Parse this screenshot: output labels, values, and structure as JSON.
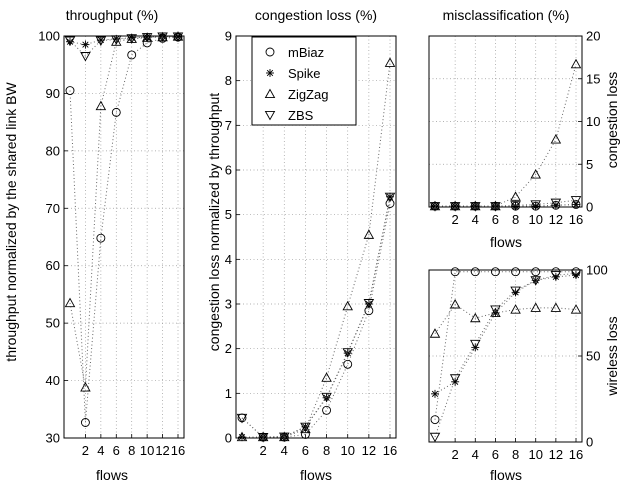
{
  "chart_data": [
    {
      "type": "line",
      "title": "throughput (%)",
      "xlabel": "flows",
      "ylabel": "throughput normalized by the shared link BW",
      "x": [
        1,
        2,
        4,
        6,
        8,
        10,
        12,
        16
      ],
      "xticks": [
        "2",
        "4",
        "6",
        "8",
        "10",
        "12",
        "16"
      ],
      "ylim": [
        30,
        100
      ],
      "yticks": [
        30,
        40,
        50,
        60,
        70,
        80,
        90,
        100
      ],
      "grid": true,
      "series": [
        {
          "name": "mBiaz",
          "marker": "circle",
          "values": [
            90.5,
            32.7,
            64.8,
            86.7,
            96.7,
            98.8,
            99.6,
            99.8
          ]
        },
        {
          "name": "Spike",
          "marker": "star",
          "values": [
            99,
            98.5,
            99.3,
            99.5,
            99.7,
            99.8,
            99.9,
            99.9
          ]
        },
        {
          "name": "ZigZag",
          "marker": "triangle-up",
          "values": [
            53.5,
            38.8,
            87.8,
            99.0,
            99.5,
            99.7,
            99.8,
            99.9
          ]
        },
        {
          "name": "ZBS",
          "marker": "triangle-down",
          "values": [
            99.2,
            96.5,
            99.2,
            99.4,
            99.6,
            99.8,
            99.9,
            99.9
          ]
        }
      ]
    },
    {
      "type": "line",
      "title": "congestion loss (%)",
      "xlabel": "flows",
      "ylabel": "congestion loss normalized by throughput",
      "x": [
        1,
        2,
        4,
        6,
        8,
        10,
        12,
        16
      ],
      "xticks": [
        "2",
        "4",
        "6",
        "8",
        "10",
        "12",
        "16"
      ],
      "ylim": [
        0,
        9
      ],
      "yticks": [
        0,
        1,
        2,
        3,
        4,
        5,
        6,
        7,
        8,
        9
      ],
      "grid": true,
      "legend": "top-left",
      "series": [
        {
          "name": "mBiaz",
          "marker": "circle",
          "values": [
            0.45,
            0.02,
            0.02,
            0.08,
            0.62,
            1.65,
            2.85,
            5.25
          ]
        },
        {
          "name": "Spike",
          "marker": "star",
          "values": [
            0.02,
            0.02,
            0.03,
            0.25,
            0.9,
            1.9,
            3.0,
            5.4
          ]
        },
        {
          "name": "ZigZag",
          "marker": "triangle-up",
          "values": [
            0.02,
            0.02,
            0.02,
            0.2,
            1.35,
            2.95,
            4.55,
            8.4
          ]
        },
        {
          "name": "ZBS",
          "marker": "triangle-down",
          "values": [
            0.45,
            0.02,
            0.03,
            0.25,
            0.92,
            1.92,
            3.02,
            5.4
          ]
        }
      ]
    },
    {
      "type": "line",
      "title": "misclassification (%)",
      "xlabel": "flows",
      "ylabel": "congestion loss",
      "x": [
        1,
        2,
        4,
        6,
        8,
        10,
        12,
        16
      ],
      "xticks": [
        "2",
        "4",
        "6",
        "8",
        "10",
        "12",
        "16"
      ],
      "ylim": [
        0,
        20
      ],
      "yticks": [
        0,
        5,
        10,
        15,
        20
      ],
      "grid": true,
      "series": [
        {
          "name": "mBiaz",
          "marker": "circle",
          "values": [
            0.1,
            0.1,
            0.1,
            0.1,
            0.1,
            0.1,
            0.2,
            0.3
          ]
        },
        {
          "name": "Spike",
          "marker": "star",
          "values": [
            0.1,
            0.1,
            0.1,
            0.1,
            0.1,
            0.1,
            0.2,
            0.3
          ]
        },
        {
          "name": "ZigZag",
          "marker": "triangle-up",
          "values": [
            0.1,
            0.1,
            0.1,
            0.1,
            1.2,
            3.8,
            7.9,
            16.7
          ]
        },
        {
          "name": "ZBS",
          "marker": "triangle-down",
          "values": [
            0.1,
            0.1,
            0.1,
            0.1,
            0.2,
            0.3,
            0.5,
            0.8
          ]
        }
      ]
    },
    {
      "type": "line",
      "title": "",
      "xlabel": "flows",
      "ylabel": "wireless loss",
      "x": [
        1,
        2,
        4,
        6,
        8,
        10,
        12,
        16
      ],
      "xticks": [
        "2",
        "4",
        "6",
        "8",
        "10",
        "12",
        "16"
      ],
      "ylim": [
        0,
        100
      ],
      "yticks": [
        0,
        50,
        100
      ],
      "grid": true,
      "series": [
        {
          "name": "mBiaz",
          "marker": "circle",
          "values": [
            13,
            99,
            99,
            99,
            99,
            99,
            99,
            99
          ]
        },
        {
          "name": "Spike",
          "marker": "star",
          "values": [
            28,
            35,
            55,
            75,
            87,
            94,
            96,
            97
          ]
        },
        {
          "name": "ZigZag",
          "marker": "triangle-up",
          "values": [
            63,
            80,
            72,
            75,
            77,
            78,
            78,
            77
          ]
        },
        {
          "name": "ZBS",
          "marker": "triangle-down",
          "values": [
            3,
            37,
            57,
            77,
            88,
            94,
            97,
            98
          ]
        }
      ]
    }
  ]
}
